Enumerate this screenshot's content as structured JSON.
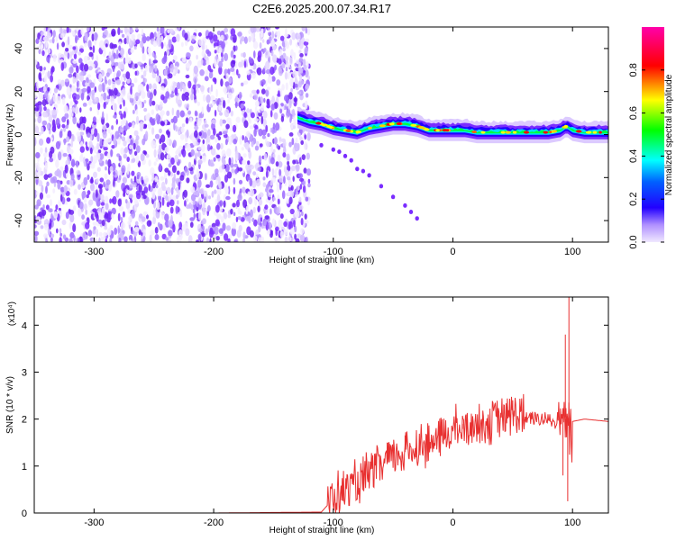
{
  "title": "C2E6.2025.200.07.34.R17",
  "chart_data": [
    {
      "type": "heatmap",
      "name": "spectrogram",
      "xlabel": "Height of straight line (km)",
      "ylabel": "Frequency (Hz)",
      "xlim": [
        -350,
        130
      ],
      "ylim": [
        -50,
        50
      ],
      "xticks": [
        -300,
        -200,
        -100,
        0,
        100
      ],
      "yticks": [
        -40,
        -20,
        0,
        20,
        40
      ],
      "colorbar": {
        "label": "Normalized spectral amplitude",
        "range": [
          0,
          1
        ],
        "ticks": [
          0.0,
          0.2,
          0.4,
          0.6,
          0.8
        ],
        "colors": [
          "#e8d8ff",
          "#7a2cff",
          "#2200ff",
          "#00ffff",
          "#00ff00",
          "#ffff00",
          "#ff0000",
          "#ff00aa"
        ]
      },
      "noise_region": {
        "x_range": [
          -350,
          -120
        ],
        "y_range": [
          -50,
          50
        ]
      },
      "main_band": {
        "x": [
          -130,
          -120,
          -110,
          -100,
          -90,
          -80,
          -70,
          -60,
          -50,
          -40,
          -30,
          -20,
          -10,
          0,
          10,
          20,
          40,
          60,
          80,
          90,
          95,
          100,
          110,
          130
        ],
        "freq": [
          8,
          6,
          5,
          3,
          2,
          1,
          3,
          4,
          5,
          5,
          4,
          2,
          2,
          2,
          2,
          1,
          1,
          1,
          1,
          2,
          4,
          2,
          1,
          1
        ]
      },
      "secondary_track": {
        "x": [
          -110,
          -100,
          -95,
          -90,
          -85,
          -80,
          -75,
          -70,
          -60,
          -50,
          -40,
          -35,
          -30
        ],
        "freq": [
          -5,
          -7,
          -8,
          -10,
          -12,
          -16,
          -17,
          -19,
          -24,
          -29,
          -33,
          -36,
          -39
        ]
      }
    },
    {
      "type": "line",
      "name": "snr",
      "xlabel": "Height of straight line (km)",
      "ylabel": "SNR (10 * v/v)",
      "multiplier": "(x10⁴)",
      "xlim": [
        -350,
        130
      ],
      "ylim": [
        0,
        4.6
      ],
      "xticks": [
        -300,
        -200,
        -100,
        0,
        100
      ],
      "yticks": [
        0,
        1,
        2,
        3,
        4
      ],
      "color": "#e83030",
      "series": [
        {
          "x": [
            -350,
            -200,
            -110,
            -100,
            -90,
            -80,
            -70,
            -60,
            -50,
            -40,
            -30,
            -20,
            -10,
            0,
            10,
            20,
            30,
            40,
            50,
            60,
            70,
            80,
            85,
            90,
            95,
            100,
            110,
            130
          ],
          "y": [
            0,
            0,
            0.02,
            0.3,
            0.5,
            0.6,
            0.8,
            1.0,
            1.2,
            1.3,
            1.4,
            1.5,
            1.6,
            1.75,
            1.8,
            1.9,
            1.95,
            2.0,
            2.1,
            2.05,
            2.0,
            2.0,
            1.9,
            2.2,
            2.0,
            1.95,
            2.0,
            1.95
          ]
        }
      ],
      "spikes": [
        {
          "x": 97,
          "y": 4.6
        },
        {
          "x": 96,
          "y": 0.25
        },
        {
          "x": 94,
          "y": 3.8
        },
        {
          "x": 92,
          "y": 0.8
        },
        {
          "x": 50,
          "y": 2.4
        },
        {
          "x": 8,
          "y": 1.9
        },
        {
          "x": -40,
          "y": 1.65
        },
        {
          "x": -55,
          "y": 1.5
        }
      ]
    }
  ]
}
